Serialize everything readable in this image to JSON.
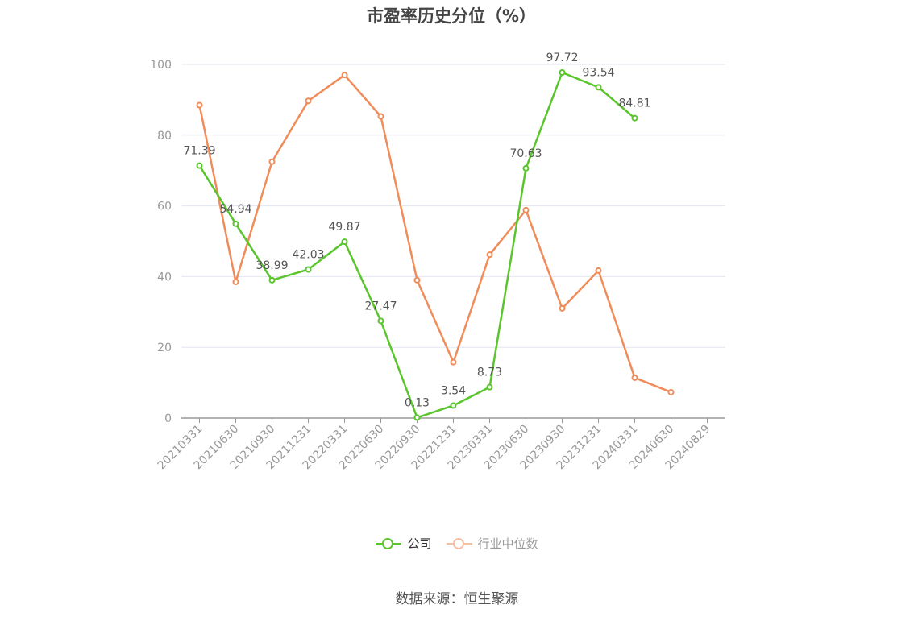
{
  "title": "市盈率历史分位（%）",
  "source": "数据来源：恒生聚源",
  "chart_data": {
    "type": "line",
    "title": "市盈率历史分位（%）",
    "categories": [
      "20210331",
      "20210630",
      "20210930",
      "20211231",
      "20220331",
      "20220630",
      "20220930",
      "20221231",
      "20230331",
      "20230630",
      "20230930",
      "20231231",
      "20240331",
      "20240630",
      "20240829"
    ],
    "y_ticks": [
      "0",
      "20",
      "40",
      "60",
      "80",
      "100"
    ],
    "ylim": [
      0,
      100
    ],
    "grid": true,
    "legend_position": "bottom",
    "series": [
      {
        "name": "公司",
        "color": "#5ac52d",
        "values": [
          71.39,
          54.94,
          38.99,
          42.03,
          49.87,
          27.47,
          0.13,
          3.54,
          8.73,
          70.63,
          97.72,
          93.54,
          84.81,
          null,
          null
        ],
        "labels": [
          "71.39",
          "54.94",
          "38.99",
          "42.03",
          "49.87",
          "27.47",
          "0.13",
          "3.54",
          "8.73",
          "70.63",
          "97.72",
          "93.54",
          "84.81",
          "",
          ""
        ]
      },
      {
        "name": "行业中位数",
        "color": "#f08c5a",
        "values": [
          88.5,
          38.5,
          72.5,
          89.7,
          97.0,
          85.3,
          39.0,
          15.8,
          46.2,
          58.8,
          31.0,
          41.7,
          11.4,
          7.3,
          null
        ],
        "labels": []
      }
    ]
  }
}
